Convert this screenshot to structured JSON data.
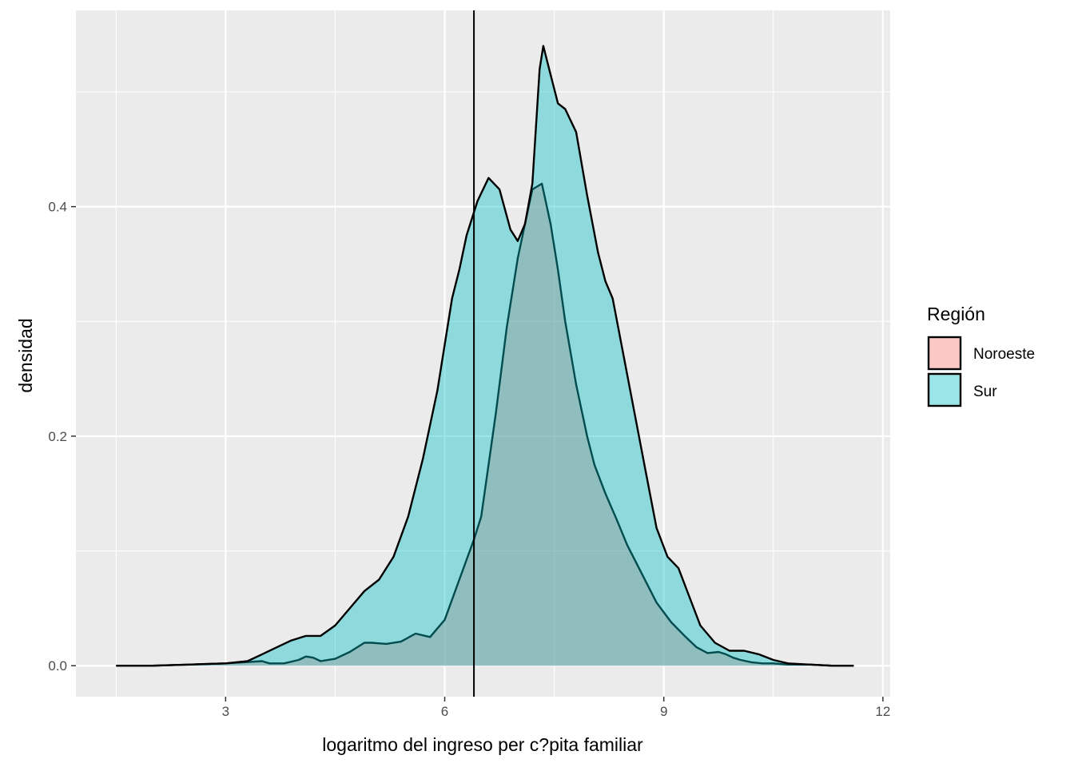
{
  "chart_data": {
    "type": "area",
    "title": "",
    "xlabel": "logaritmo del ingreso per c?pita familiar",
    "ylabel": "densidad",
    "xlim": [
      0.95,
      12.1
    ],
    "ylim": [
      -0.027,
      0.571
    ],
    "x_ticks": [
      3,
      6,
      9,
      12
    ],
    "x_tick_labels": [
      "3",
      "6",
      "9",
      "12"
    ],
    "y_ticks": [
      0.0,
      0.2,
      0.4
    ],
    "y_tick_labels": [
      "0.0",
      "0.2",
      "0.4"
    ],
    "grid": true,
    "vline_x": 6.4,
    "legend": {
      "title": "Región",
      "position": "right",
      "entries": [
        "Noroeste",
        "Sur"
      ]
    },
    "colors": {
      "panel": "#EBEBEB",
      "grid": "#FFFFFF",
      "Noroeste": "#F8766D",
      "Sur": "#00BFC4",
      "outline": "#000000"
    },
    "series": [
      {
        "name": "Noroeste",
        "x": [
          1.5,
          2.0,
          2.5,
          3.0,
          3.5,
          3.6,
          3.8,
          4.0,
          4.1,
          4.2,
          4.3,
          4.5,
          4.7,
          4.9,
          5.0,
          5.2,
          5.4,
          5.6,
          5.8,
          6.0,
          6.2,
          6.4,
          6.5,
          6.7,
          6.85,
          7.0,
          7.1,
          7.2,
          7.33,
          7.45,
          7.55,
          7.65,
          7.8,
          7.95,
          8.05,
          8.2,
          8.35,
          8.5,
          8.7,
          8.9,
          9.1,
          9.3,
          9.45,
          9.6,
          9.75,
          9.85,
          9.95,
          10.05,
          10.2,
          10.35,
          10.5,
          10.7,
          11.0,
          11.3,
          11.6
        ],
        "values": [
          0.0,
          0.0,
          0.001,
          0.002,
          0.004,
          0.002,
          0.002,
          0.005,
          0.008,
          0.007,
          0.004,
          0.006,
          0.012,
          0.02,
          0.02,
          0.019,
          0.021,
          0.028,
          0.025,
          0.04,
          0.075,
          0.11,
          0.13,
          0.22,
          0.295,
          0.355,
          0.385,
          0.415,
          0.42,
          0.385,
          0.345,
          0.3,
          0.245,
          0.2,
          0.175,
          0.15,
          0.128,
          0.105,
          0.08,
          0.055,
          0.038,
          0.025,
          0.016,
          0.011,
          0.012,
          0.01,
          0.007,
          0.005,
          0.003,
          0.002,
          0.002,
          0.001,
          0.001,
          0.0,
          0.0
        ]
      },
      {
        "name": "Sur",
        "x": [
          1.5,
          2.0,
          2.5,
          3.0,
          3.3,
          3.5,
          3.7,
          3.9,
          4.1,
          4.3,
          4.5,
          4.7,
          4.9,
          5.1,
          5.3,
          5.5,
          5.7,
          5.9,
          6.1,
          6.2,
          6.3,
          6.45,
          6.6,
          6.75,
          6.9,
          7.0,
          7.1,
          7.2,
          7.3,
          7.35,
          7.45,
          7.55,
          7.65,
          7.8,
          7.95,
          8.1,
          8.2,
          8.3,
          8.45,
          8.6,
          8.75,
          8.9,
          9.05,
          9.2,
          9.35,
          9.5,
          9.7,
          9.9,
          10.1,
          10.3,
          10.5,
          10.7,
          11.0,
          11.3,
          11.6
        ],
        "values": [
          0.0,
          0.0,
          0.001,
          0.002,
          0.004,
          0.01,
          0.016,
          0.022,
          0.026,
          0.026,
          0.035,
          0.05,
          0.065,
          0.075,
          0.095,
          0.13,
          0.18,
          0.24,
          0.32,
          0.345,
          0.375,
          0.405,
          0.425,
          0.415,
          0.38,
          0.37,
          0.385,
          0.42,
          0.52,
          0.54,
          0.515,
          0.49,
          0.485,
          0.465,
          0.41,
          0.36,
          0.335,
          0.32,
          0.27,
          0.22,
          0.17,
          0.12,
          0.095,
          0.085,
          0.06,
          0.035,
          0.02,
          0.013,
          0.013,
          0.01,
          0.005,
          0.002,
          0.001,
          0.0,
          0.0
        ]
      }
    ]
  }
}
